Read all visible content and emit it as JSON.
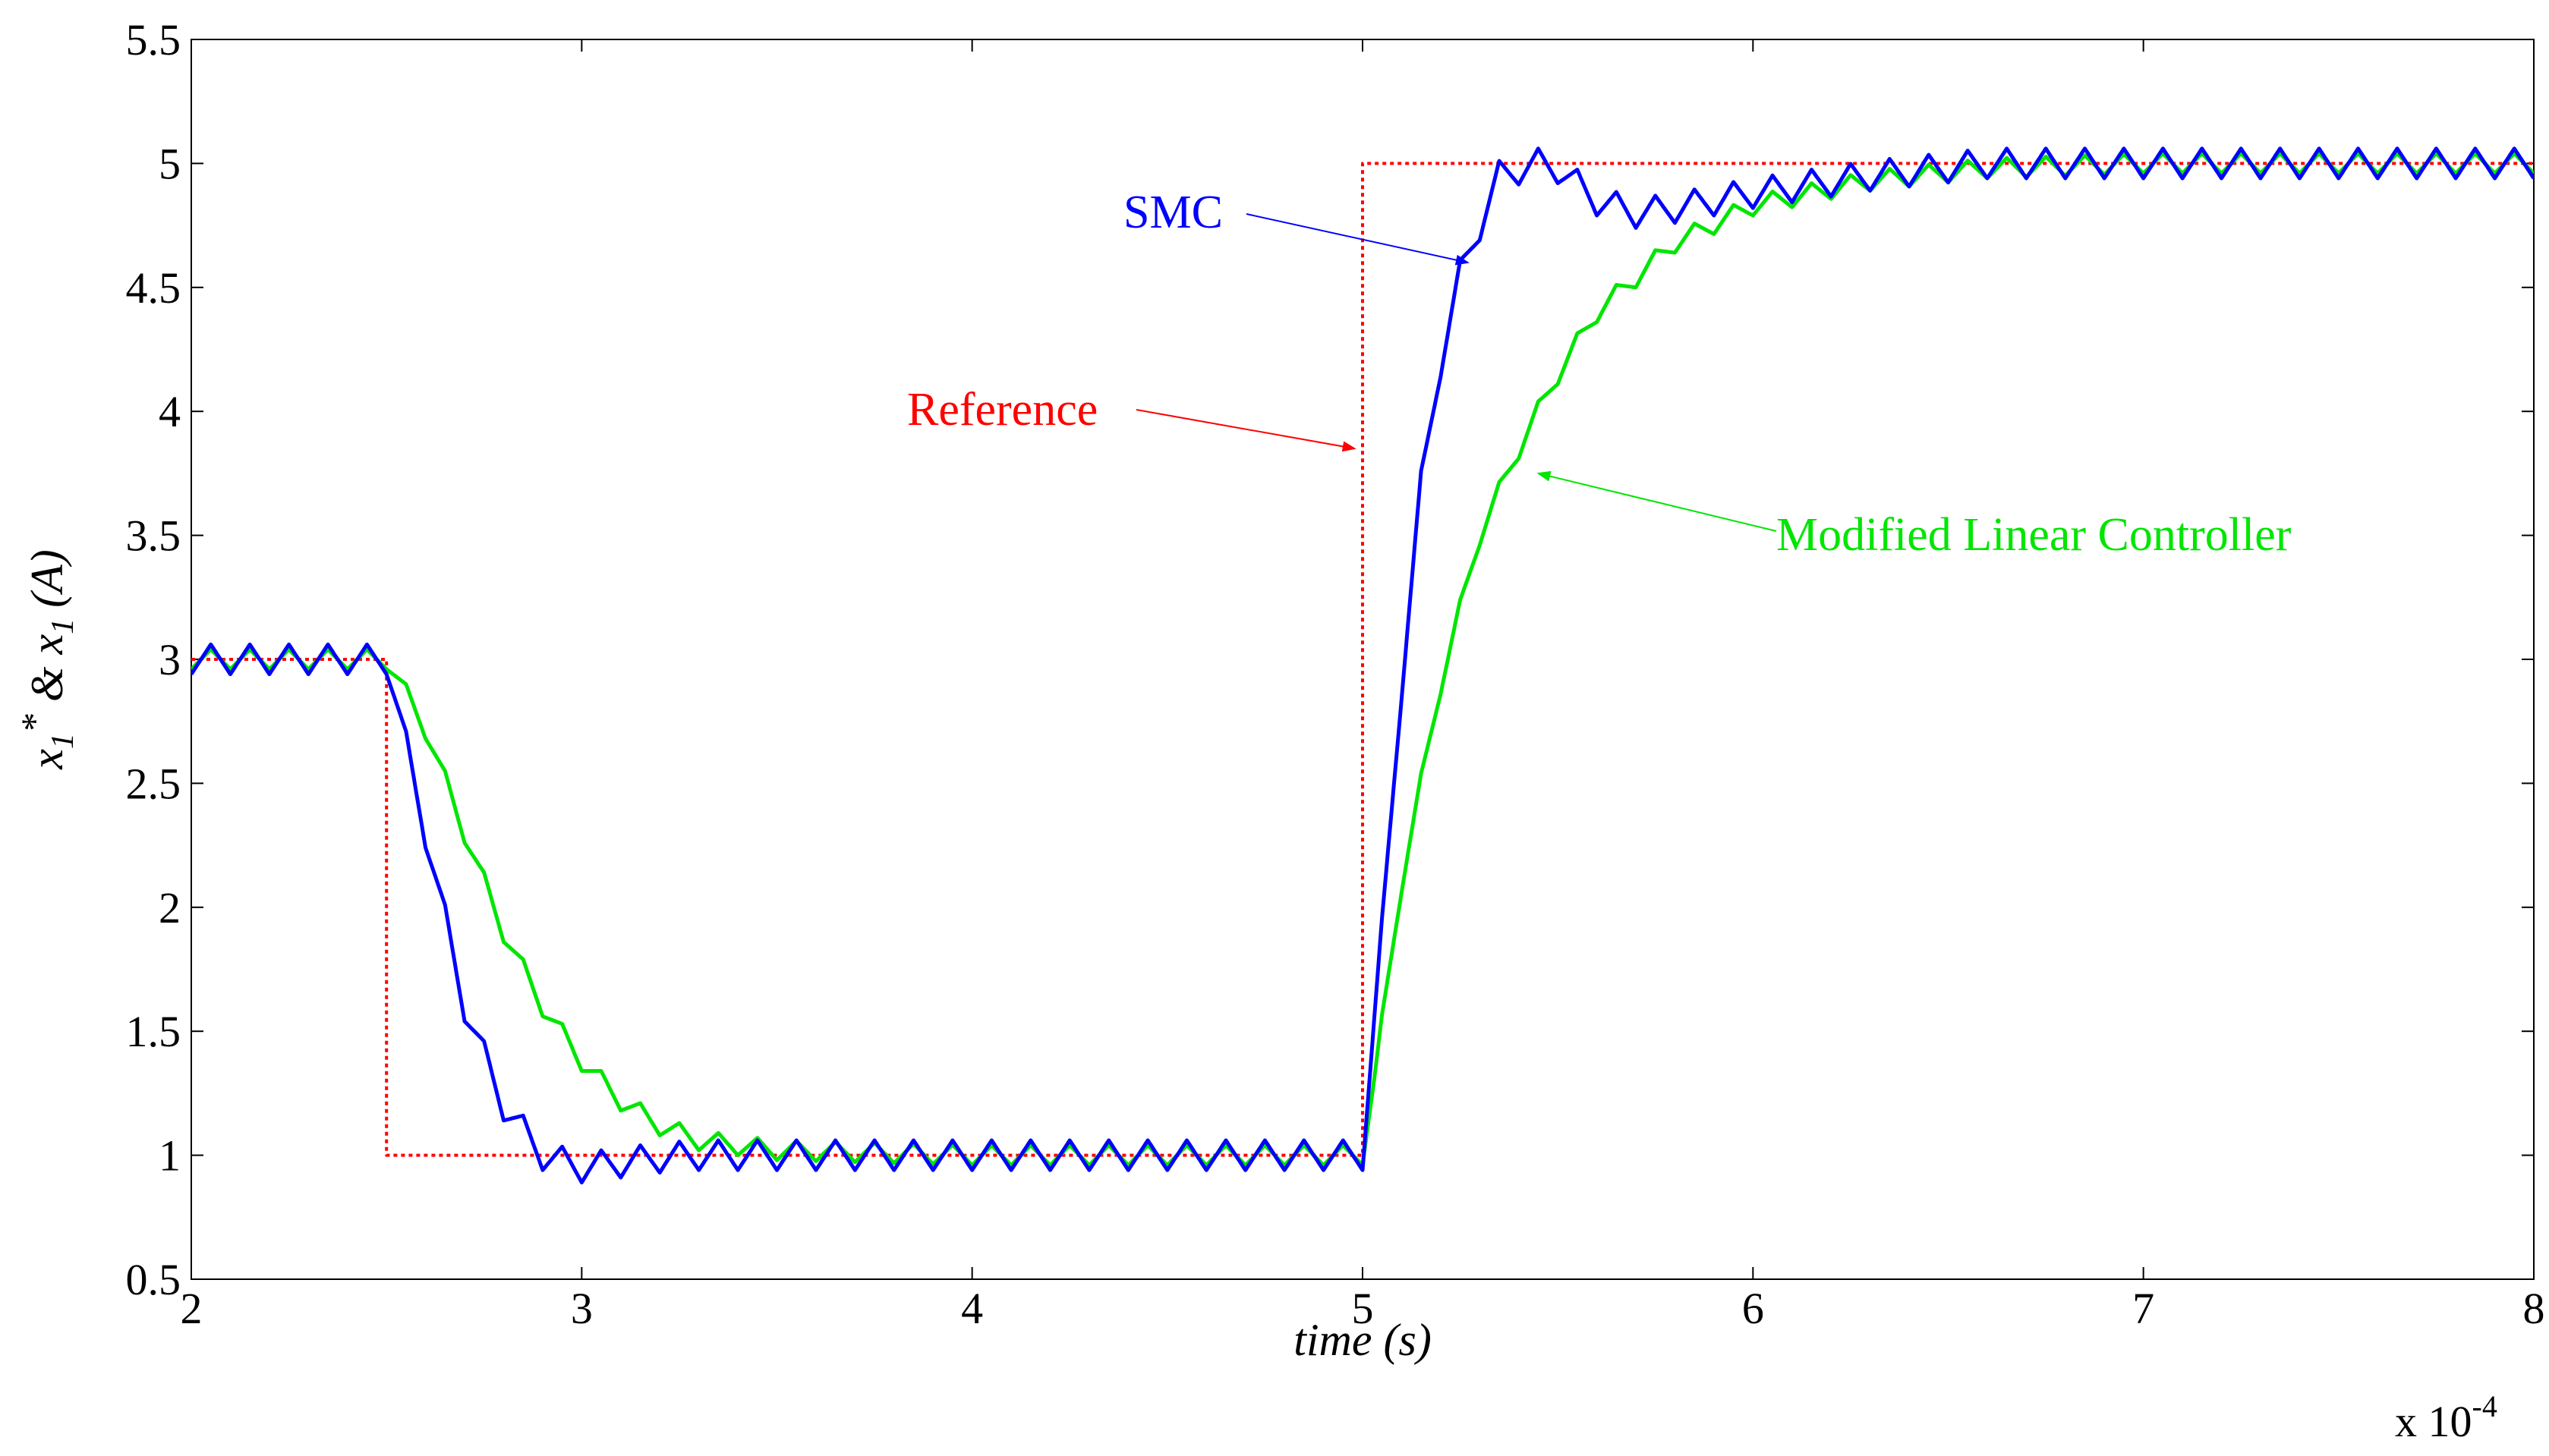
{
  "chart_data": {
    "type": "line",
    "title": "",
    "xlabel": "time (s)",
    "ylabel_parts": {
      "x1": "x",
      "sub1": "1",
      "star": "*",
      "amp": "&",
      "x2": "x",
      "sub2": "1",
      "unit": "(A)"
    },
    "x_multiplier": {
      "base": "x 10",
      "exponent": "-4"
    },
    "xlim": [
      2,
      8
    ],
    "ylim": [
      0.5,
      5.5
    ],
    "xticks": [
      2,
      3,
      4,
      5,
      6,
      7,
      8
    ],
    "xtick_labels": [
      "2",
      "3",
      "4",
      "5",
      "6",
      "7",
      "8"
    ],
    "yticks": [
      0.5,
      1,
      1.5,
      2,
      2.5,
      3,
      3.5,
      4,
      4.5,
      5,
      5.5
    ],
    "ytick_labels": [
      "0.5",
      "1",
      "1.5",
      "2",
      "2.5",
      "3",
      "3.5",
      "4",
      "4.5",
      "5",
      "5.5"
    ],
    "grid": false,
    "series": [
      {
        "name": "Reference",
        "color": "#ff0000",
        "style": "dotted",
        "x": [
          2,
          2.5,
          2.5,
          5.0,
          5.0,
          8
        ],
        "y": [
          3,
          3,
          1,
          1,
          5,
          5
        ]
      },
      {
        "name": "Modified Linear Controller",
        "color": "#00e600",
        "style": "solid",
        "ripple": 0.04,
        "x": [
          2,
          2.5,
          2.6,
          2.7,
          2.8,
          2.9,
          3.0,
          3.1,
          3.2,
          3.3,
          3.5,
          4.0,
          5.0,
          5.03,
          5.1,
          5.2,
          5.3,
          5.4,
          5.5,
          5.6,
          5.8,
          6.0,
          6.3,
          6.6,
          7.0,
          7.5,
          8.0
        ],
        "y": [
          3.0,
          3.0,
          2.72,
          2.3,
          1.9,
          1.6,
          1.38,
          1.22,
          1.12,
          1.06,
          1.02,
          1.0,
          1.0,
          1.3,
          2.1,
          2.9,
          3.5,
          3.85,
          4.15,
          4.4,
          4.68,
          4.83,
          4.93,
          4.98,
          5.0,
          5.0,
          5.0
        ]
      },
      {
        "name": "SMC",
        "color": "#0000ff",
        "style": "solid",
        "ripple": 0.06,
        "x": [
          2,
          2.5,
          2.6,
          2.7,
          2.8,
          2.9,
          3.0,
          3.1,
          3.2,
          3.3,
          3.5,
          4.0,
          5.0,
          5.05,
          5.1,
          5.15,
          5.2,
          5.25,
          5.3,
          5.35,
          5.45,
          5.5,
          5.6,
          5.7,
          5.8,
          6.0,
          6.3,
          6.6,
          7.0,
          8.0
        ],
        "y": [
          3.0,
          3.0,
          2.3,
          1.6,
          1.2,
          1.0,
          0.95,
          0.97,
          0.99,
          1.0,
          1.0,
          1.0,
          1.0,
          1.9,
          2.9,
          3.7,
          4.2,
          4.55,
          4.75,
          4.95,
          5.0,
          4.98,
          4.85,
          4.8,
          4.82,
          4.88,
          4.95,
          5.0,
          5.0,
          5.0
        ]
      }
    ],
    "annotations": [
      {
        "text": "SMC",
        "color": "#0000ff",
        "target_x": 5.27,
        "target_y": 4.6
      },
      {
        "text": "Reference",
        "color": "#ff0000",
        "target_x": 4.98,
        "target_y": 3.85
      },
      {
        "text": "Modified Linear Controller",
        "color": "#00e600",
        "target_x": 5.45,
        "target_y": 3.75
      }
    ]
  }
}
